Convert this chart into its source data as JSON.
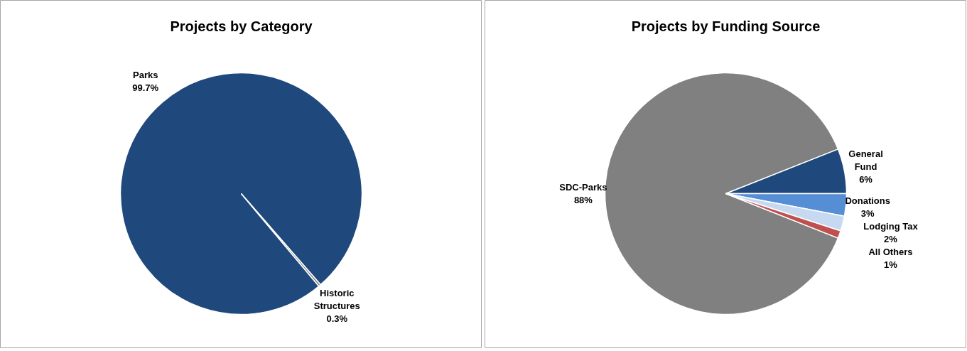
{
  "chart_data": [
    {
      "type": "pie",
      "title": "Projects by Category",
      "categories": [
        "Parks",
        "Historic Structures"
      ],
      "values": [
        99.7,
        0.3
      ],
      "colors": [
        "#1f497d",
        "#7f7f7f"
      ],
      "value_labels": [
        "99.7%",
        "0.3%"
      ]
    },
    {
      "type": "pie",
      "title": "Projects by Funding Source",
      "categories": [
        "SDC-Parks",
        "General Fund",
        "Donations",
        "Lodging Tax",
        "All Others"
      ],
      "values": [
        88,
        6,
        3,
        2,
        1
      ],
      "colors": [
        "#808080",
        "#1f497d",
        "#558ed5",
        "#c6d9f1",
        "#c0504d"
      ],
      "value_labels": [
        "88%",
        "6%",
        "3%",
        "2%",
        "1%"
      ]
    }
  ]
}
